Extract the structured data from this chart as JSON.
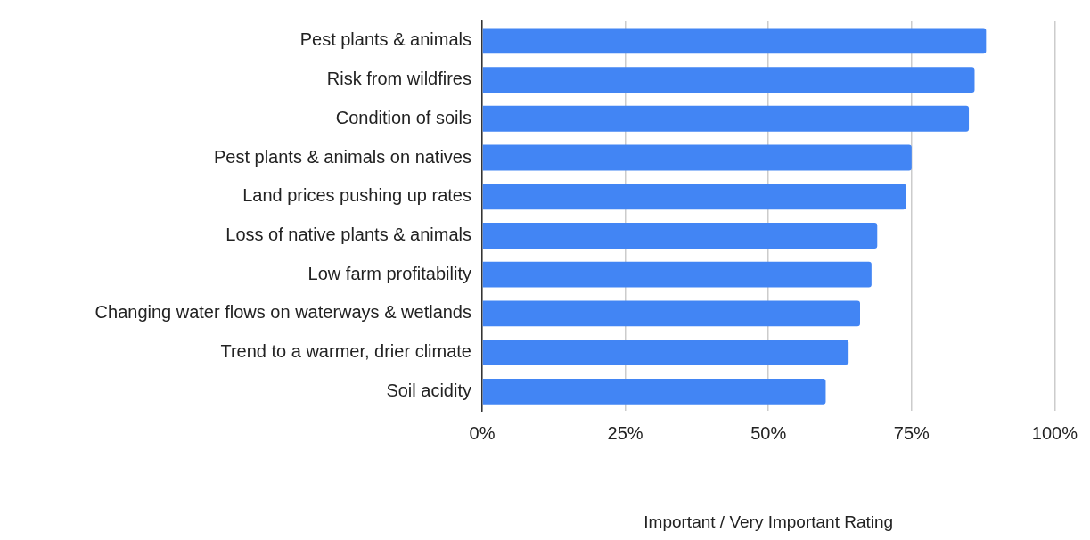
{
  "chart_data": {
    "type": "bar",
    "orientation": "horizontal",
    "xlabel": "Important / Very Important Rating",
    "categories": [
      "Pest plants & animals",
      "Risk from wildfires",
      "Condition of soils",
      "Pest plants & animals on natives",
      "Land prices pushing up rates",
      "Loss of native plants & animals",
      "Low farm profitability",
      "Changing water flows on waterways & wetlands",
      "Trend to a warmer, drier climate",
      "Soil acidity"
    ],
    "values": [
      88,
      86,
      85,
      75,
      74,
      69,
      68,
      66,
      64,
      60
    ],
    "color": "#4285f4",
    "xlim": [
      0,
      100
    ],
    "xticks": [
      {
        "value": 0,
        "label": "0%"
      },
      {
        "value": 25,
        "label": "25%"
      },
      {
        "value": 50,
        "label": "50%"
      },
      {
        "value": 75,
        "label": "75%"
      },
      {
        "value": 100,
        "label": "100%"
      }
    ],
    "grid": "x",
    "legend": false
  }
}
